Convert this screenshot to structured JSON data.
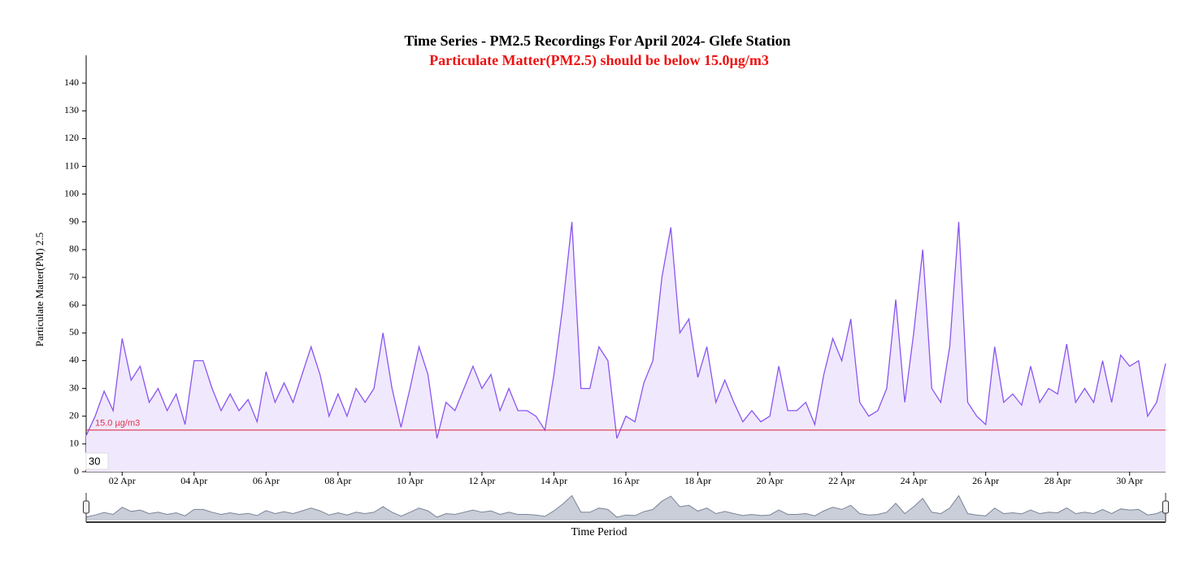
{
  "chart_data": {
    "type": "area",
    "title": "Time Series - PM2.5 Recordings For April 2024- Glefe Station",
    "subtitle": "Particulate Matter(PM2.5) should be below 15.0µg/m3",
    "ylabel": "Particulate Matter(PM) 2.5",
    "xlabel": "Time Period",
    "range_box": "30",
    "xlim": [
      1,
      31
    ],
    "ylim": [
      0,
      150
    ],
    "yticks": [
      0,
      10,
      20,
      30,
      40,
      50,
      60,
      70,
      80,
      90,
      100,
      110,
      120,
      130,
      140
    ],
    "xticks": [
      {
        "value": 2,
        "label": "02 Apr"
      },
      {
        "value": 4,
        "label": "04 Apr"
      },
      {
        "value": 6,
        "label": "06 Apr"
      },
      {
        "value": 8,
        "label": "08 Apr"
      },
      {
        "value": 10,
        "label": "10 Apr"
      },
      {
        "value": 12,
        "label": "12 Apr"
      },
      {
        "value": 14,
        "label": "14 Apr"
      },
      {
        "value": 16,
        "label": "16 Apr"
      },
      {
        "value": 18,
        "label": "18 Apr"
      },
      {
        "value": 20,
        "label": "20 Apr"
      },
      {
        "value": 22,
        "label": "22 Apr"
      },
      {
        "value": 24,
        "label": "24 Apr"
      },
      {
        "value": 26,
        "label": "26 Apr"
      },
      {
        "value": 28,
        "label": "28 Apr"
      },
      {
        "value": 30,
        "label": "30 Apr"
      }
    ],
    "threshold": {
      "value": 15,
      "label": "15.0 µg/m3",
      "color": "#e0334f"
    },
    "x": [
      1,
      1.25,
      1.5,
      1.75,
      2,
      2.25,
      2.5,
      2.75,
      3,
      3.25,
      3.5,
      3.75,
      4,
      4.25,
      4.5,
      4.75,
      5,
      5.25,
      5.5,
      5.75,
      6,
      6.25,
      6.5,
      6.75,
      7,
      7.25,
      7.5,
      7.75,
      8,
      8.25,
      8.5,
      8.75,
      9,
      9.25,
      9.5,
      9.75,
      10,
      10.25,
      10.5,
      10.75,
      11,
      11.25,
      11.5,
      11.75,
      12,
      12.25,
      12.5,
      12.75,
      13,
      13.25,
      13.5,
      13.75,
      14,
      14.25,
      14.5,
      14.75,
      15,
      15.25,
      15.5,
      15.75,
      16,
      16.25,
      16.5,
      16.75,
      17,
      17.25,
      17.5,
      17.75,
      18,
      18.25,
      18.5,
      18.75,
      19,
      19.25,
      19.5,
      19.75,
      20,
      20.25,
      20.5,
      20.75,
      21,
      21.25,
      21.5,
      21.75,
      22,
      22.25,
      22.5,
      22.75,
      23,
      23.25,
      23.5,
      23.75,
      24,
      24.25,
      24.5,
      24.75,
      25,
      25.25,
      25.5,
      25.75,
      26,
      26.25,
      26.5,
      26.75,
      27,
      27.25,
      27.5,
      27.75,
      28,
      28.25,
      28.5,
      28.75,
      29,
      29.25,
      29.5,
      29.75,
      30,
      30.25,
      30.5,
      30.75,
      31
    ],
    "series": [
      {
        "color": "#8a55f0",
        "fill": "#f0e8fd",
        "values": [
          13,
          20,
          29,
          22,
          48,
          33,
          38,
          25,
          30,
          22,
          28,
          17,
          40,
          40,
          30,
          22,
          28,
          22,
          26,
          18,
          36,
          25,
          32,
          25,
          35,
          45,
          35,
          20,
          28,
          20,
          30,
          25,
          30,
          50,
          30,
          16,
          30,
          45,
          35,
          12,
          25,
          22,
          30,
          38,
          30,
          35,
          22,
          30,
          22,
          22,
          20,
          15,
          35,
          60,
          90,
          30,
          30,
          45,
          40,
          12,
          20,
          18,
          32,
          40,
          70,
          88,
          50,
          55,
          34,
          45,
          25,
          33,
          25,
          18,
          22,
          18,
          20,
          38,
          22,
          22,
          25,
          17,
          35,
          48,
          40,
          55,
          25,
          20,
          22,
          30,
          62,
          25,
          50,
          80,
          30,
          25,
          45,
          90,
          25,
          20,
          17,
          45,
          25,
          28,
          24,
          38,
          25,
          30,
          28,
          46,
          25,
          30,
          25,
          40,
          25,
          42,
          38,
          40,
          20,
          25,
          39
        ]
      }
    ]
  }
}
